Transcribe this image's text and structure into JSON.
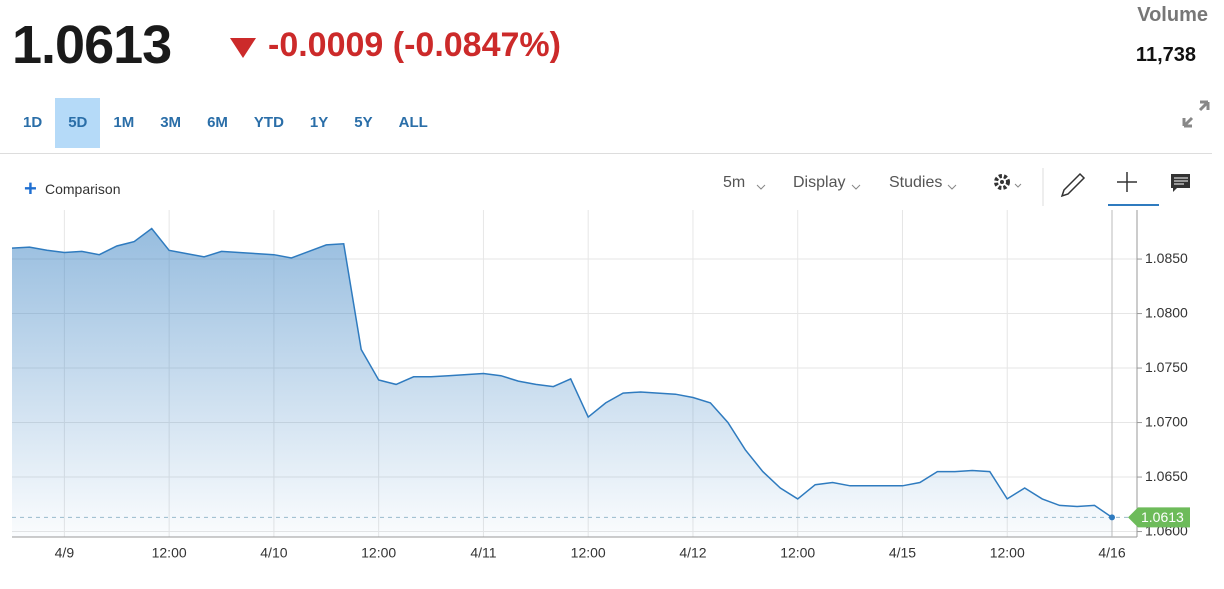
{
  "header": {
    "price": "1.0613",
    "change": "-0.0009 (-0.0847%)",
    "volume_label": "Volume",
    "volume": "11,738"
  },
  "ranges": [
    "1D",
    "5D",
    "1M",
    "3M",
    "6M",
    "YTD",
    "1Y",
    "5Y",
    "ALL"
  ],
  "selected_range": "5D",
  "toolbar": {
    "comparison": "Comparison",
    "interval": "5m",
    "display": "Display",
    "studies": "Studies"
  },
  "chart_data": {
    "type": "area",
    "categories": [
      null,
      null,
      null,
      "4/9",
      null,
      null,
      null,
      null,
      null,
      "12:00",
      null,
      null,
      null,
      null,
      null,
      "4/10",
      null,
      null,
      null,
      null,
      null,
      "12:00",
      null,
      null,
      null,
      null,
      null,
      "4/11",
      null,
      null,
      null,
      null,
      null,
      "12:00",
      null,
      null,
      null,
      null,
      null,
      "4/12",
      null,
      null,
      null,
      null,
      null,
      "12:00",
      null,
      null,
      null,
      null,
      null,
      "4/15",
      null,
      null,
      null,
      null,
      null,
      "12:00",
      null,
      null,
      null,
      null,
      null,
      "4/16"
    ],
    "series": [
      {
        "color": "#2f7bbf",
        "values": [
          1.086,
          1.0861,
          1.0858,
          1.0856,
          1.0857,
          1.0854,
          1.0862,
          1.0866,
          1.0878,
          1.0858,
          1.0855,
          1.0852,
          1.0857,
          1.0856,
          1.0855,
          1.0854,
          1.0851,
          1.0857,
          1.0863,
          1.0864,
          1.0767,
          1.0739,
          1.0735,
          1.0742,
          1.0742,
          1.0743,
          1.0744,
          1.0745,
          1.0743,
          1.0738,
          1.0735,
          1.0733,
          1.074,
          1.0705,
          1.0718,
          1.0727,
          1.0728,
          1.0727,
          1.0726,
          1.0723,
          1.0718,
          1.07,
          1.0675,
          1.0655,
          1.064,
          1.063,
          1.0643,
          1.0645,
          1.0642,
          1.0642,
          1.0642,
          1.0642,
          1.0645,
          1.0655,
          1.0655,
          1.0656,
          1.0655,
          1.063,
          1.064,
          1.063,
          1.0624,
          1.0623,
          1.0624,
          1.0613
        ]
      }
    ],
    "ylim": [
      1.0595,
      1.0895
    ],
    "yticks": [
      {
        "value": 1.06,
        "label": "1.0600"
      },
      {
        "value": 1.065,
        "label": "1.0650"
      },
      {
        "value": 1.07,
        "label": "1.0700"
      },
      {
        "value": 1.075,
        "label": "1.0750"
      },
      {
        "value": 1.08,
        "label": "1.0800"
      },
      {
        "value": 1.085,
        "label": "1.0850"
      }
    ],
    "grid": true
  }
}
